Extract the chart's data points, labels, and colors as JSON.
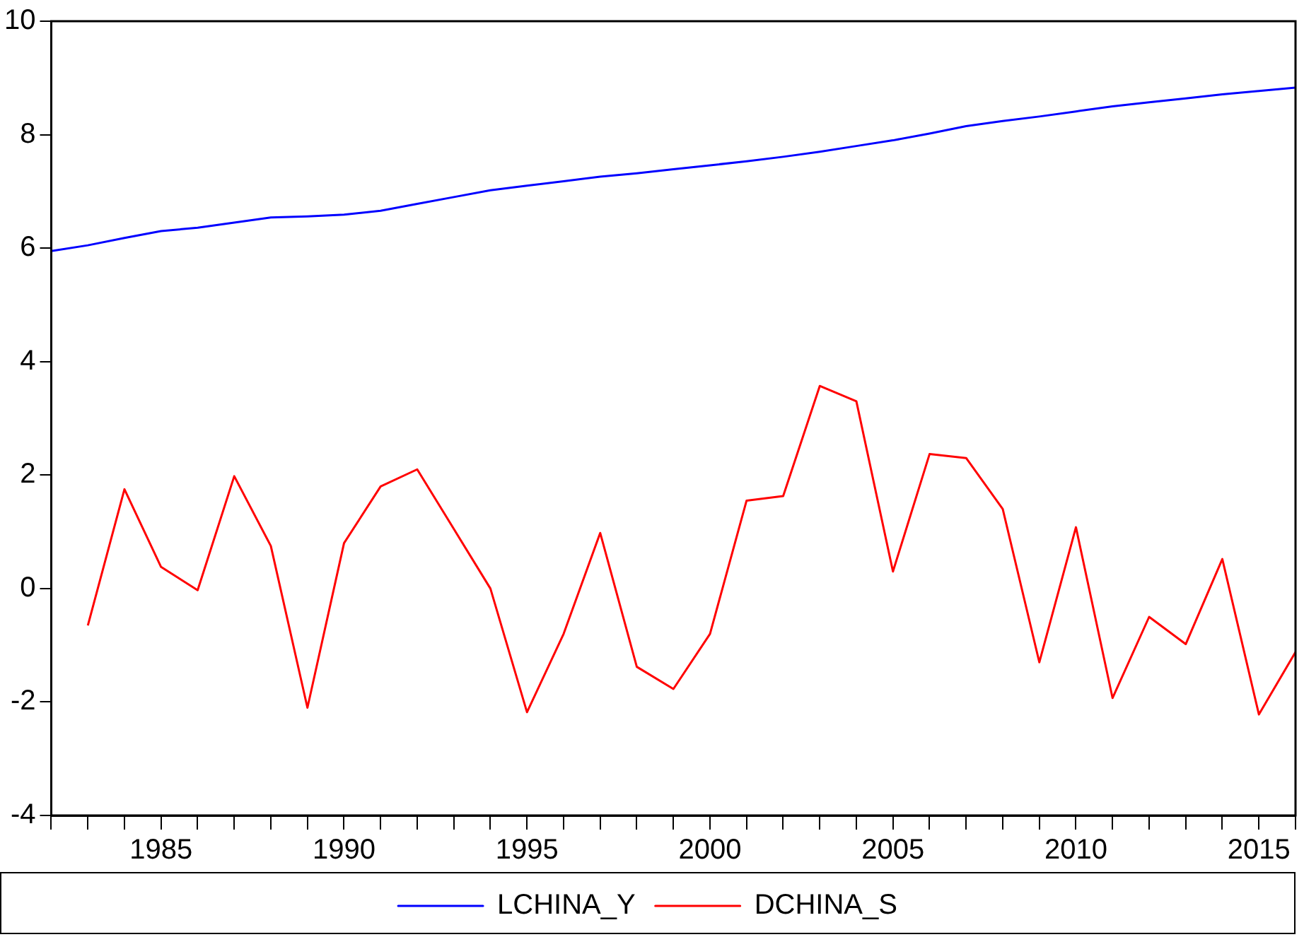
{
  "chart_data": {
    "type": "line",
    "x": [
      1982,
      1983,
      1984,
      1985,
      1986,
      1987,
      1988,
      1989,
      1990,
      1991,
      1992,
      1993,
      1994,
      1995,
      1996,
      1997,
      1998,
      1999,
      2000,
      2001,
      2002,
      2003,
      2004,
      2005,
      2006,
      2007,
      2008,
      2009,
      2010,
      2011,
      2012,
      2013,
      2014,
      2015,
      2016
    ],
    "series": [
      {
        "name": "LCHINA_Y",
        "color": "#0000ff",
        "values": [
          5.95,
          6.05,
          6.18,
          6.3,
          6.36,
          6.45,
          6.54,
          6.56,
          6.59,
          6.66,
          6.78,
          6.9,
          7.02,
          7.1,
          7.18,
          7.26,
          7.32,
          7.39,
          7.46,
          7.53,
          7.61,
          7.7,
          7.8,
          7.9,
          8.02,
          8.15,
          8.24,
          8.32,
          8.41,
          8.5,
          8.57,
          8.64,
          8.71,
          8.77,
          8.83
        ]
      },
      {
        "name": "DCHINA_S",
        "color": "#ff0000",
        "values": [
          null,
          -0.65,
          1.75,
          0.38,
          -0.03,
          1.98,
          0.75,
          -2.1,
          0.8,
          1.8,
          2.1,
          1.05,
          0.0,
          -2.18,
          -0.8,
          0.98,
          -1.38,
          -1.77,
          -0.8,
          1.55,
          1.63,
          3.57,
          3.3,
          0.3,
          2.37,
          2.3,
          1.4,
          -1.3,
          1.08,
          -1.93,
          -0.5,
          -0.98,
          0.52,
          -2.22,
          -1.12
        ]
      }
    ],
    "xlim": [
      1982,
      2016
    ],
    "xticks": [
      {
        "value": 1982,
        "label": null
      },
      {
        "value": 1983,
        "label": null
      },
      {
        "value": 1984,
        "label": null
      },
      1985,
      {
        "value": 1986,
        "label": null
      },
      {
        "value": 1987,
        "label": null
      },
      {
        "value": 1988,
        "label": null
      },
      {
        "value": 1989,
        "label": null
      },
      1990,
      {
        "value": 1991,
        "label": null
      },
      {
        "value": 1992,
        "label": null
      },
      {
        "value": 1993,
        "label": null
      },
      {
        "value": 1994,
        "label": null
      },
      1995,
      {
        "value": 1996,
        "label": null
      },
      {
        "value": 1997,
        "label": null
      },
      {
        "value": 1998,
        "label": null
      },
      {
        "value": 1999,
        "label": null
      },
      2000,
      {
        "value": 2001,
        "label": null
      },
      {
        "value": 2002,
        "label": null
      },
      {
        "value": 2003,
        "label": null
      },
      {
        "value": 2004,
        "label": null
      },
      2005,
      {
        "value": 2006,
        "label": null
      },
      {
        "value": 2007,
        "label": null
      },
      {
        "value": 2008,
        "label": null
      },
      {
        "value": 2009,
        "label": null
      },
      2010,
      {
        "value": 2011,
        "label": null
      },
      {
        "value": 2012,
        "label": null
      },
      {
        "value": 2013,
        "label": null
      },
      {
        "value": 2014,
        "label": null
      },
      2015,
      {
        "value": 2016,
        "label": null
      }
    ],
    "ylim": [
      -4,
      10
    ],
    "yticks": [
      -4,
      -2,
      0,
      2,
      4,
      6,
      8,
      10
    ],
    "grid": false,
    "legend": "bottom",
    "marker": "none",
    "line_style": "solid"
  }
}
